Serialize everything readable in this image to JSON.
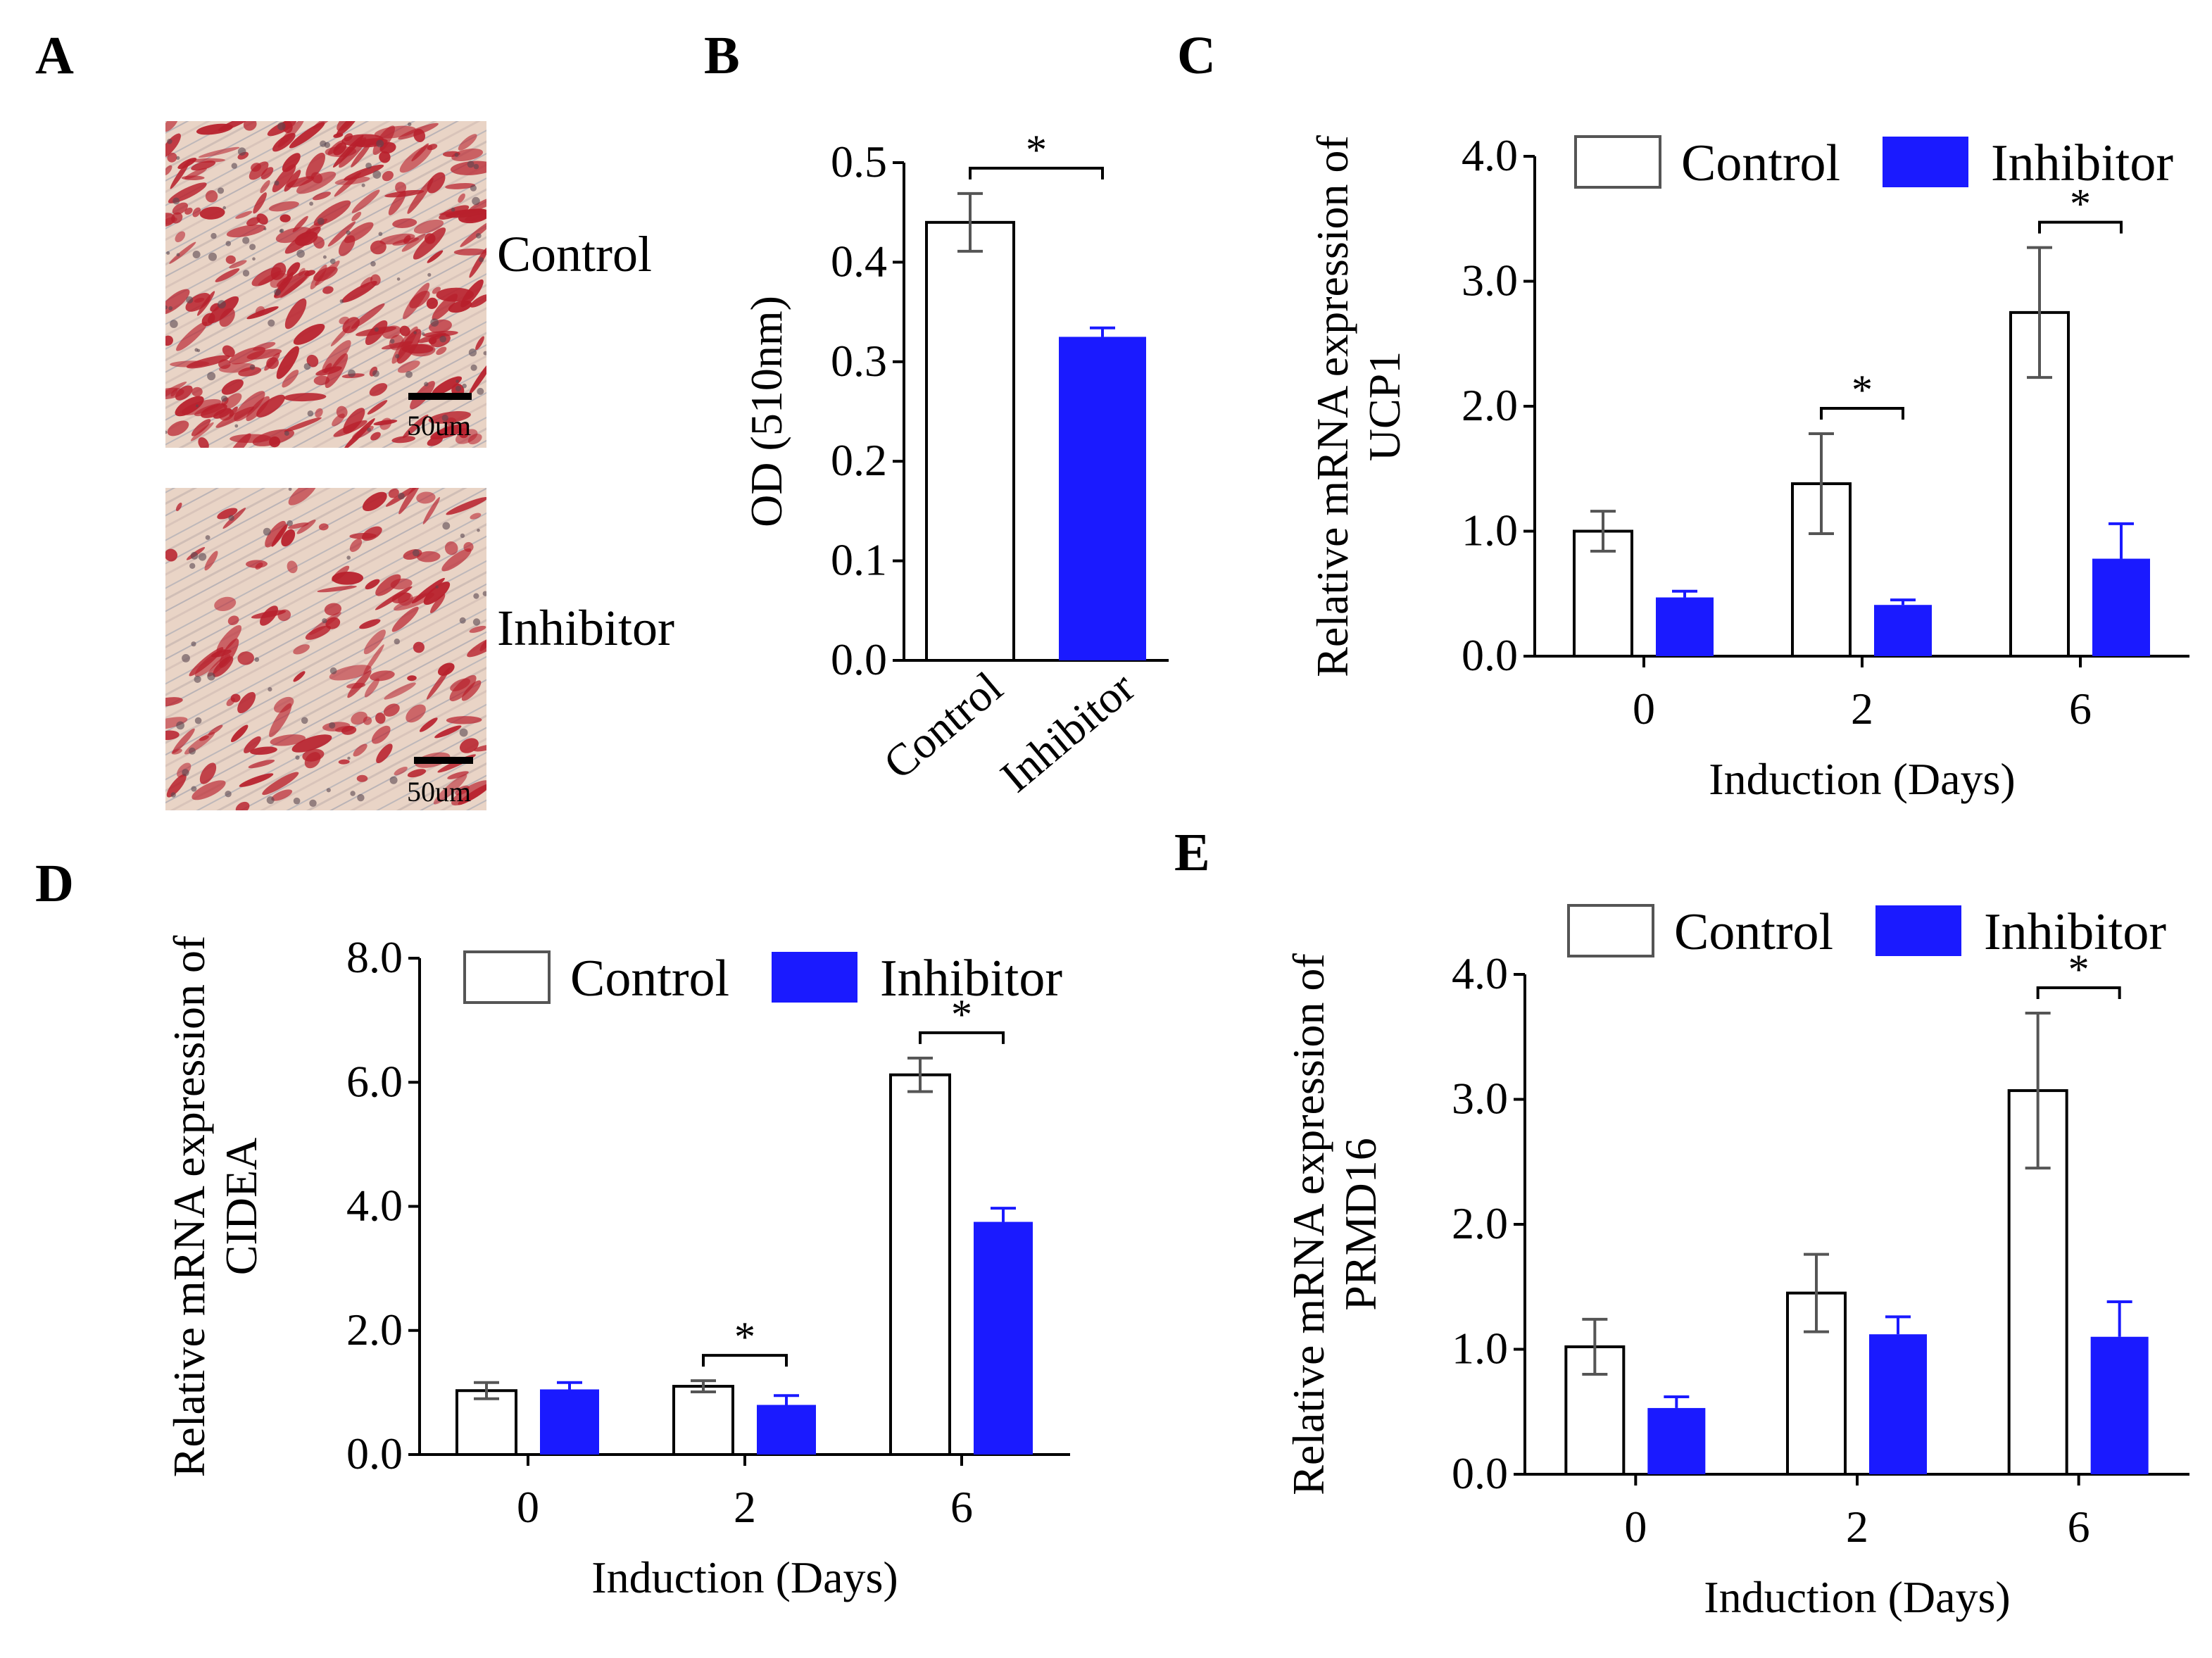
{
  "colors": {
    "control_fill": "#ffffff",
    "control_stroke": "#000000",
    "inhibitor_fill": "#1a1aff",
    "axis": "#000000",
    "error_bar": "#555555",
    "stain_red": "#b8202c",
    "stain_bg": "#e9d4c6"
  },
  "panel_a": {
    "letter": "A",
    "images": [
      {
        "label": "Control",
        "scale_text": "50um"
      },
      {
        "label": "Inhibitor",
        "scale_text": "50um"
      }
    ]
  },
  "chart_data": [
    {
      "panel": "B",
      "type": "bar",
      "title": "",
      "xlabel": "",
      "ylabel": "OD (510nm)",
      "ylim": [
        0,
        0.5
      ],
      "yticks": [
        "0.0",
        "0.1",
        "0.2",
        "0.3",
        "0.4",
        "0.5"
      ],
      "categories": [
        "Control",
        "Inhibitor"
      ],
      "values": [
        0.44,
        0.325
      ],
      "errors": [
        0.029,
        0.009
      ],
      "significance": [
        {
          "from": 0,
          "to": 1,
          "label": "*"
        }
      ]
    },
    {
      "panel": "C",
      "type": "bar",
      "title": "",
      "xlabel": "Induction (Days)",
      "ylabel": [
        "Relative mRNA expression of",
        "UCP1"
      ],
      "ylim": [
        0,
        4
      ],
      "yticks": [
        "0.0",
        "1.0",
        "2.0",
        "3.0",
        "4.0"
      ],
      "categories": [
        "0",
        "2",
        "6"
      ],
      "legend": [
        "Control",
        "Inhibitor"
      ],
      "series": [
        {
          "name": "Control",
          "values": [
            1.0,
            1.38,
            2.75
          ],
          "errors": [
            0.16,
            0.4,
            0.52
          ]
        },
        {
          "name": "Inhibitor",
          "values": [
            0.47,
            0.41,
            0.78
          ],
          "errors": [
            0.05,
            0.04,
            0.28
          ]
        }
      ],
      "significance": [
        {
          "category": 1,
          "label": "*"
        },
        {
          "category": 2,
          "label": "*"
        }
      ]
    },
    {
      "panel": "D",
      "type": "bar",
      "title": "",
      "xlabel": "Induction (Days)",
      "ylabel": [
        "Relative mRNA expression of",
        "CIDEA"
      ],
      "ylim": [
        0,
        8
      ],
      "yticks": [
        "0.0",
        "2.0",
        "4.0",
        "6.0",
        "8.0"
      ],
      "categories": [
        "0",
        "2",
        "6"
      ],
      "legend": [
        "Control",
        "Inhibitor"
      ],
      "series": [
        {
          "name": "Control",
          "values": [
            1.03,
            1.1,
            6.12
          ],
          "errors": [
            0.13,
            0.09,
            0.27
          ]
        },
        {
          "name": "Inhibitor",
          "values": [
            1.05,
            0.8,
            3.75
          ],
          "errors": [
            0.11,
            0.15,
            0.22
          ]
        }
      ],
      "significance": [
        {
          "category": 1,
          "label": "*"
        },
        {
          "category": 2,
          "label": "*"
        }
      ]
    },
    {
      "panel": "E",
      "type": "bar",
      "title": "",
      "xlabel": "Induction (Days)",
      "ylabel": [
        "Relative mRNA expression of",
        "PRMD16"
      ],
      "ylim": [
        0,
        4
      ],
      "yticks": [
        "0.0",
        "1.0",
        "2.0",
        "3.0",
        "4.0"
      ],
      "categories": [
        "0",
        "2",
        "6"
      ],
      "legend": [
        "Control",
        "Inhibitor"
      ],
      "series": [
        {
          "name": "Control",
          "values": [
            1.02,
            1.45,
            3.07
          ],
          "errors": [
            0.22,
            0.31,
            0.62
          ]
        },
        {
          "name": "Inhibitor",
          "values": [
            0.53,
            1.12,
            1.1
          ],
          "errors": [
            0.09,
            0.14,
            0.28
          ]
        }
      ],
      "significance": [
        {
          "category": 2,
          "label": "*"
        }
      ]
    }
  ]
}
